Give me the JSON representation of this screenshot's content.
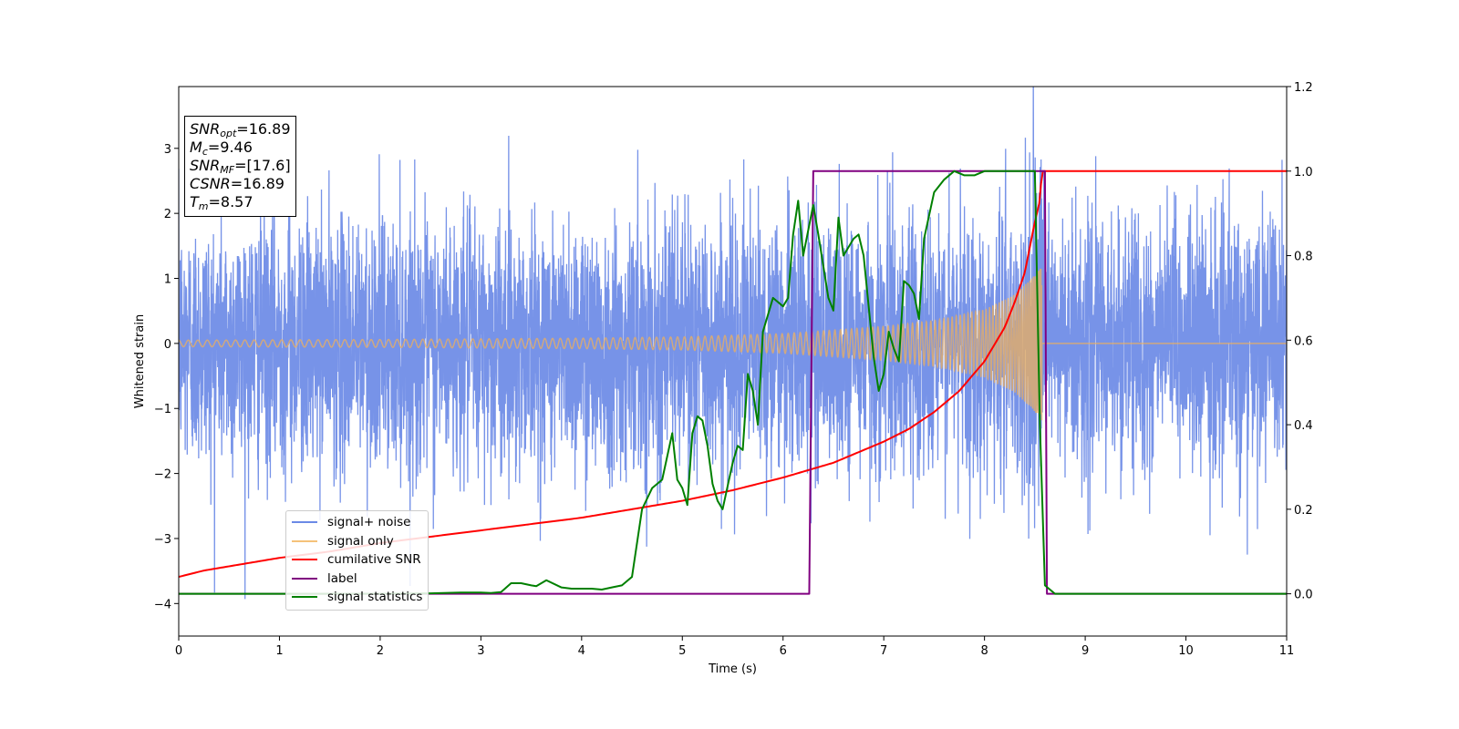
{
  "chart_data": {
    "type": "line",
    "title": "",
    "xlabel": "Time (s)",
    "ylabel": "Whitened strain",
    "xlim": [
      0,
      11
    ],
    "ylim": [
      -4.5,
      3.95
    ],
    "y2lim": [
      -0.1,
      1.2
    ],
    "x_ticks": [
      0,
      1,
      2,
      3,
      4,
      5,
      6,
      7,
      8,
      9,
      10,
      11
    ],
    "y_ticks": [
      -4,
      -3,
      -2,
      -1,
      0,
      1,
      2,
      3
    ],
    "y2_ticks": [
      "0.0",
      "0.2",
      "0.4",
      "0.6",
      "0.8",
      "1.0",
      "1.2"
    ],
    "grid": false,
    "legend_position": "lower-left",
    "series": [
      {
        "name": "signal+ noise",
        "axis": "left",
        "color": "#6b8ae6",
        "description_values": "dense noise, roughly -3.7 to 3.6",
        "x_range": [
          0,
          11
        ],
        "noise_std": 0.95
      },
      {
        "name": "signal only",
        "axis": "left",
        "color": "#f5b054",
        "chirp_end_time": 8.57,
        "envelope": {
          "t": [
            0,
            2,
            4,
            5,
            6,
            7,
            7.5,
            8,
            8.3,
            8.5,
            8.57
          ],
          "amp": [
            0.05,
            0.06,
            0.08,
            0.1,
            0.15,
            0.26,
            0.35,
            0.52,
            0.75,
            1.05,
            1.2
          ]
        }
      },
      {
        "name": "cumilative SNR",
        "axis": "right",
        "color": "#ff0000",
        "x": [
          0,
          0.25,
          0.5,
          1,
          1.5,
          2,
          2.5,
          3,
          3.5,
          4,
          4.5,
          5,
          5.5,
          6,
          6.5,
          7,
          7.25,
          7.5,
          7.75,
          8,
          8.1,
          8.2,
          8.3,
          8.4,
          8.5,
          8.55,
          8.57,
          9,
          10,
          11
        ],
        "y": [
          0.04,
          0.055,
          0.065,
          0.085,
          0.1,
          0.12,
          0.135,
          0.15,
          0.165,
          0.18,
          0.2,
          0.22,
          0.245,
          0.275,
          0.31,
          0.36,
          0.39,
          0.43,
          0.48,
          0.55,
          0.59,
          0.63,
          0.69,
          0.76,
          0.88,
          0.93,
          1.0,
          1.0,
          1.0,
          1.0
        ]
      },
      {
        "name": "label",
        "axis": "right",
        "color": "#800080",
        "x": [
          0,
          6.26,
          6.3,
          8.6,
          8.62,
          11
        ],
        "y": [
          0,
          0,
          1,
          1,
          0,
          0
        ]
      },
      {
        "name": "signal statistics",
        "axis": "right",
        "color": "#008000",
        "x": [
          0,
          1,
          2,
          2.5,
          2.8,
          3,
          3.1,
          3.2,
          3.3,
          3.4,
          3.5,
          3.55,
          3.65,
          3.8,
          3.9,
          4,
          4.1,
          4.2,
          4.3,
          4.4,
          4.5,
          4.6,
          4.7,
          4.8,
          4.9,
          4.95,
          5,
          5.05,
          5.1,
          5.15,
          5.2,
          5.25,
          5.3,
          5.35,
          5.4,
          5.5,
          5.55,
          5.6,
          5.65,
          5.7,
          5.75,
          5.8,
          5.9,
          6,
          6.05,
          6.1,
          6.15,
          6.2,
          6.3,
          6.35,
          6.45,
          6.5,
          6.55,
          6.6,
          6.7,
          6.75,
          6.8,
          6.9,
          6.95,
          7,
          7.05,
          7.1,
          7.15,
          7.2,
          7.25,
          7.3,
          7.35,
          7.4,
          7.5,
          7.6,
          7.7,
          7.8,
          7.9,
          8,
          8.2,
          8.4,
          8.5,
          8.55,
          8.6,
          8.65,
          8.7,
          9,
          10,
          11
        ],
        "y": [
          0,
          0,
          0,
          0.001,
          0.003,
          0.003,
          0.002,
          0.004,
          0.025,
          0.025,
          0.02,
          0.018,
          0.032,
          0.015,
          0.012,
          0.012,
          0.012,
          0.01,
          0.015,
          0.02,
          0.04,
          0.2,
          0.25,
          0.27,
          0.38,
          0.27,
          0.25,
          0.21,
          0.38,
          0.42,
          0.41,
          0.35,
          0.26,
          0.22,
          0.2,
          0.31,
          0.35,
          0.34,
          0.52,
          0.48,
          0.4,
          0.62,
          0.7,
          0.68,
          0.7,
          0.85,
          0.93,
          0.8,
          0.92,
          0.85,
          0.7,
          0.67,
          0.89,
          0.8,
          0.84,
          0.85,
          0.8,
          0.56,
          0.48,
          0.52,
          0.62,
          0.58,
          0.55,
          0.74,
          0.73,
          0.71,
          0.65,
          0.84,
          0.95,
          0.98,
          1.0,
          0.99,
          0.99,
          1.0,
          1.0,
          1.0,
          1.0,
          0.4,
          0.02,
          0.01,
          0.0,
          0,
          0,
          0
        ]
      }
    ]
  },
  "info_box": {
    "snr_opt_var": "SNR",
    "snr_opt_sub": "opt",
    "snr_opt_val": "=16.89",
    "mc_var": "M",
    "mc_sub": "c",
    "mc_val": "=9.46",
    "snr_mf_var": "SNR",
    "snr_mf_sub": "MF",
    "snr_mf_val": "=[17.6]",
    "csnr_var": "CSNR",
    "csnr_val": "=16.89",
    "tm_var": "T",
    "tm_sub": "m",
    "tm_val": "=8.57"
  },
  "legend": {
    "items": [
      {
        "label": "signal+ noise",
        "color": "#6b8ae6"
      },
      {
        "label": "signal only",
        "color": "#f5b054"
      },
      {
        "label": "cumilative SNR",
        "color": "#ff0000"
      },
      {
        "label": "label",
        "color": "#800080"
      },
      {
        "label": "signal statistics",
        "color": "#008000"
      }
    ]
  }
}
